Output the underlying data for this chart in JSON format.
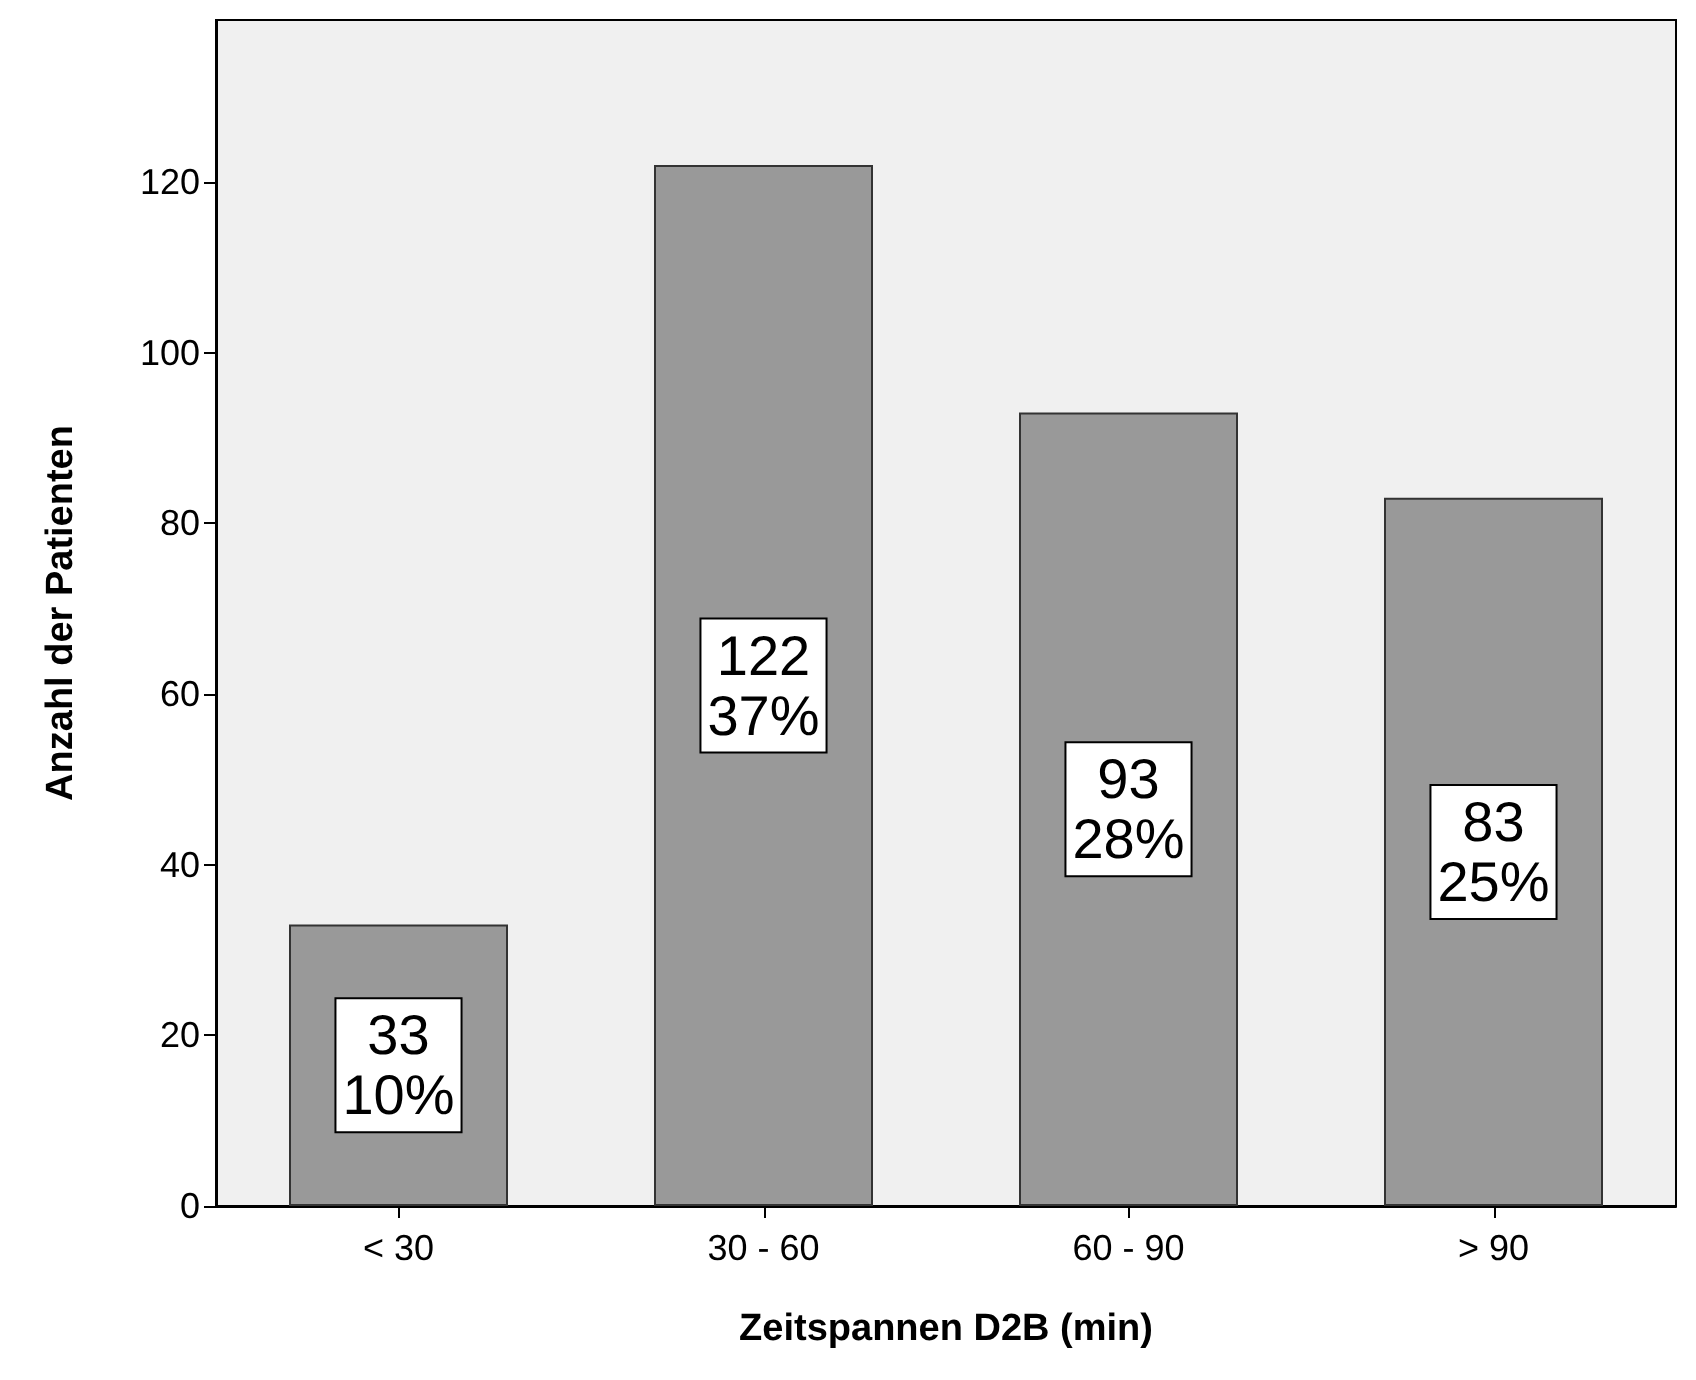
{
  "chart_data": {
    "type": "bar",
    "xlabel": "Zeitspannen D2B (min)",
    "ylabel": "Anzahl der Patienten",
    "categories": [
      "< 30",
      "30 - 60",
      "60 - 90",
      "> 90"
    ],
    "values": [
      33,
      122,
      93,
      83
    ],
    "value_labels": [
      "33\n10%",
      "122\n37%",
      "93\n28%",
      "83\n25%"
    ],
    "color": "#999999",
    "ylim": [
      0,
      139
    ],
    "yticks": [
      0,
      20,
      40,
      60,
      80,
      100,
      120
    ],
    "grid": false
  }
}
